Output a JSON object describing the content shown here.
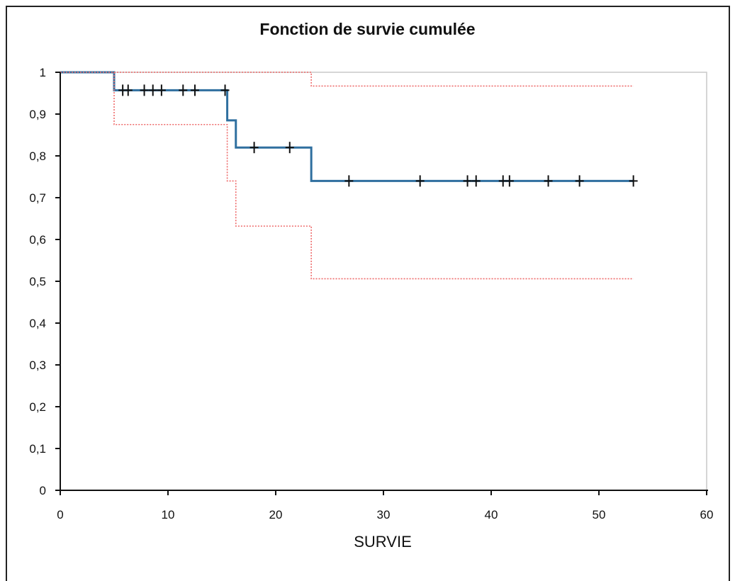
{
  "chart_data": {
    "type": "line",
    "title": "Fonction de survie cumulée",
    "xlabel": "SURVIE",
    "ylabel": "",
    "xlim": [
      0,
      60
    ],
    "ylim": [
      0,
      1
    ],
    "x_ticks": [
      0,
      10,
      20,
      30,
      40,
      50,
      60
    ],
    "y_ticks": [
      0,
      0.1,
      0.2,
      0.3,
      0.4,
      0.5,
      0.6,
      0.7,
      0.8,
      0.9,
      1
    ],
    "y_tick_labels": [
      "0",
      "0,1",
      "0,2",
      "0,3",
      "0,4",
      "0,5",
      "0,6",
      "0,7",
      "0,8",
      "0,9",
      "1"
    ],
    "x_tick_labels": [
      "0",
      "10",
      "20",
      "30",
      "40",
      "50",
      "60"
    ],
    "grid": false,
    "legend": "none",
    "series": [
      {
        "style": "step-solid",
        "color": "#2f6f9f",
        "x": [
          0,
          5,
          15.5,
          16.3,
          23.3,
          53.2
        ],
        "y": [
          1,
          0.957,
          0.885,
          0.82,
          0.74,
          0.74
        ]
      },
      {
        "style": "step-dotted",
        "color": "#ee6a6a",
        "x": [
          5,
          23.3,
          53.2
        ],
        "y": [
          1,
          0.967,
          0.967
        ]
      },
      {
        "style": "step-dotted",
        "color": "#ee6a6a",
        "x": [
          0,
          5,
          15.5,
          16.3,
          23.3,
          53.2
        ],
        "y": [
          1,
          0.875,
          0.74,
          0.632,
          0.506,
          0.506
        ]
      }
    ],
    "censored": {
      "color": "#111111",
      "x": [
        5.8,
        6.3,
        7.8,
        8.6,
        9.4,
        11.4,
        12.5,
        15.3,
        18.0,
        21.3,
        26.8,
        33.4,
        37.8,
        38.6,
        41.1,
        41.7,
        45.3,
        48.2,
        53.2
      ],
      "y": [
        0.957,
        0.957,
        0.957,
        0.957,
        0.957,
        0.957,
        0.957,
        0.957,
        0.82,
        0.82,
        0.74,
        0.74,
        0.74,
        0.74,
        0.74,
        0.74,
        0.74,
        0.74,
        0.74
      ]
    }
  }
}
